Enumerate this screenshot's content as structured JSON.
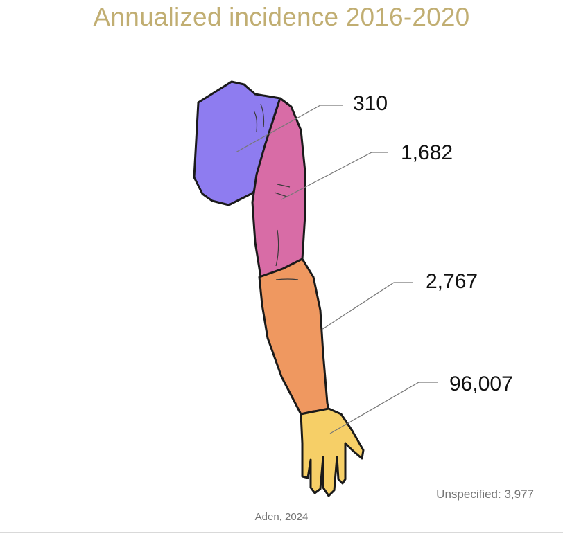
{
  "title": "Annualized incidence 2016-2020",
  "segments": [
    {
      "name": "shoulder",
      "value": "310",
      "color": "#8e7cf0"
    },
    {
      "name": "upper-arm",
      "value": "1,682",
      "color": "#d86ca6"
    },
    {
      "name": "forearm",
      "value": "2,767",
      "color": "#ef9860"
    },
    {
      "name": "hand",
      "value": "96,007",
      "color": "#f6cf67"
    }
  ],
  "unspecified": "Unspecified: 3,977",
  "source": "Aden, 2024",
  "colors": {
    "title": "#c1ae72",
    "note": "#757575",
    "outline": "#1a1a1a"
  }
}
